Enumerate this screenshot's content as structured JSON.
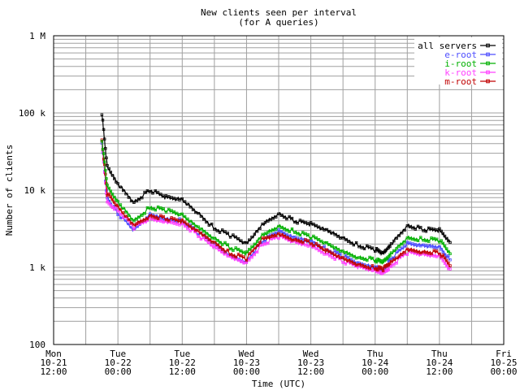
{
  "chart_data": {
    "type": "line",
    "title": "New clients seen per interval",
    "subtitle": "(for A queries)",
    "xlabel": "Time (UTC)",
    "ylabel": "Number of clients",
    "y_scale": "log",
    "ylim": [
      100,
      1000000
    ],
    "y_ticks": [
      {
        "value": 100,
        "label": "100"
      },
      {
        "value": 1000,
        "label": "1 k"
      },
      {
        "value": 10000,
        "label": "10 k"
      },
      {
        "value": 100000,
        "label": "100 k"
      },
      {
        "value": 1000000,
        "label": "1 M"
      }
    ],
    "x_range": [
      "2013-10-21 12:00",
      "2013-10-25 00:00"
    ],
    "x_ticks": [
      {
        "label": [
          "Mon",
          "10-21",
          "12:00"
        ]
      },
      {
        "label": [
          "Tue",
          "10-22",
          "00:00"
        ]
      },
      {
        "label": [
          "Tue",
          "10-22",
          "12:00"
        ]
      },
      {
        "label": [
          "Wed",
          "10-23",
          "00:00"
        ]
      },
      {
        "label": [
          "Wed",
          "10-23",
          "12:00"
        ]
      },
      {
        "label": [
          "Thu",
          "10-24",
          "00:00"
        ]
      },
      {
        "label": [
          "Thu",
          "10-24",
          "12:00"
        ]
      },
      {
        "label": [
          "Fri",
          "10-25",
          "00:00"
        ]
      }
    ],
    "grid": true,
    "legend_position": "top-right",
    "x_hours": [
      21,
      22,
      24,
      27,
      30,
      33,
      36,
      39,
      42,
      45,
      48,
      51,
      54,
      57,
      60,
      63,
      66,
      69,
      72,
      73.5,
      75,
      78,
      81,
      84,
      86
    ],
    "series": [
      {
        "name": "all servers",
        "color": "#000000",
        "values": [
          100000,
          20000,
          12000,
          7000,
          10000,
          8000,
          7500,
          5000,
          3200,
          2600,
          2000,
          3600,
          5000,
          4000,
          3600,
          3000,
          2400,
          1900,
          1700,
          1500,
          2000,
          3500,
          3100,
          3000,
          2100
        ]
      },
      {
        "name": "e-root",
        "color": "#4d4dff",
        "values": [
          40000,
          8000,
          5000,
          3000,
          4800,
          4200,
          4000,
          2800,
          2000,
          1400,
          1200,
          2200,
          2900,
          2400,
          2200,
          1700,
          1400,
          1100,
          1000,
          950,
          1300,
          2000,
          1900,
          1850,
          1250
        ]
      },
      {
        "name": "i-root",
        "color": "#00b000",
        "values": [
          45000,
          11000,
          7000,
          4000,
          6000,
          5500,
          4700,
          3300,
          2400,
          1800,
          1500,
          2600,
          3400,
          2900,
          2500,
          2000,
          1600,
          1350,
          1250,
          1150,
          1500,
          2400,
          2300,
          2250,
          1500
        ]
      },
      {
        "name": "k-root",
        "color": "#ff40ff",
        "values": [
          42000,
          7000,
          5500,
          3300,
          4200,
          3900,
          3700,
          2600,
          1800,
          1350,
          1150,
          2000,
          2500,
          2100,
          1900,
          1500,
          1200,
          1000,
          900,
          850,
          1050,
          1550,
          1450,
          1400,
          950
        ]
      },
      {
        "name": "m-root",
        "color": "#c00000",
        "values": [
          46000,
          9000,
          6000,
          3500,
          4700,
          4300,
          3900,
          2900,
          2100,
          1500,
          1300,
          2300,
          2700,
          2300,
          2100,
          1600,
          1300,
          1080,
          980,
          950,
          1150,
          1700,
          1600,
          1550,
          1050
        ]
      }
    ]
  }
}
